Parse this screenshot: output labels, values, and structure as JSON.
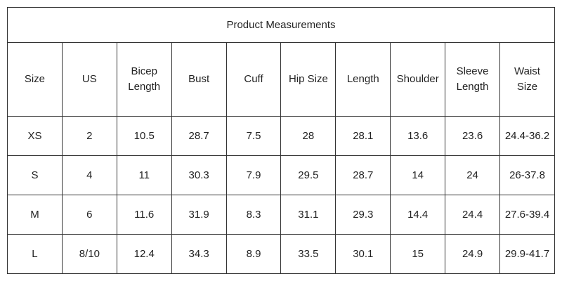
{
  "table": {
    "title": "Product Measurements",
    "header": [
      "Size",
      "US",
      "Bicep Length",
      "Bust",
      "Cuff",
      "Hip Size",
      "Length",
      "Shoulder",
      "Sleeve Length",
      "Waist Size"
    ],
    "rows": [
      [
        "XS",
        "2",
        "10.5",
        "28.7",
        "7.5",
        "28",
        "28.1",
        "13.6",
        "23.6",
        "24.4-36.2"
      ],
      [
        "S",
        "4",
        "11",
        "30.3",
        "7.9",
        "29.5",
        "28.7",
        "14",
        "24",
        "26-37.8"
      ],
      [
        "M",
        "6",
        "11.6",
        "31.9",
        "8.3",
        "31.1",
        "29.3",
        "14.4",
        "24.4",
        "27.6-39.4"
      ],
      [
        "L",
        "8/10",
        "12.4",
        "34.3",
        "8.9",
        "33.5",
        "30.1",
        "15",
        "24.9",
        "29.9-41.7"
      ]
    ]
  }
}
